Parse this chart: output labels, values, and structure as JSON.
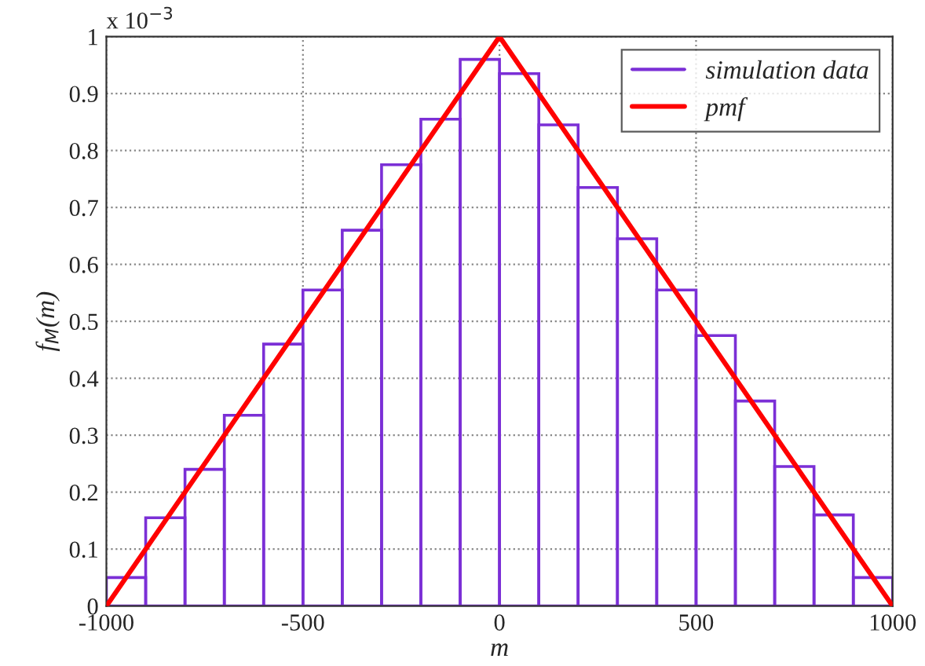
{
  "chart_data": {
    "type": "histogram",
    "xlabel": "m",
    "ylabel": "f$_{M}$(m)",
    "annotations": [
      "x 10$^{−3}$"
    ],
    "bins": [
      -1000,
      -900,
      -800,
      -700,
      -600,
      -500,
      -400,
      -300,
      -200,
      -100,
      0,
      100,
      200,
      300,
      400,
      500,
      600,
      700,
      800,
      900,
      1000
    ],
    "series": [
      {
        "name": "simulation data",
        "color": "#7b2fd6",
        "values": [
          0.05,
          0.155,
          0.24,
          0.335,
          0.46,
          0.555,
          0.66,
          0.775,
          0.855,
          0.96,
          0.935,
          0.845,
          0.735,
          0.645,
          0.555,
          0.475,
          0.36,
          0.245,
          0.16,
          0.05
        ]
      },
      {
        "name": "pmf",
        "type": "line",
        "color": "#ff0000",
        "x": [
          -1000,
          0,
          1000
        ],
        "values": [
          0,
          1,
          0
        ]
      }
    ],
    "xlim": [
      -1000,
      1000
    ],
    "ylim": [
      0,
      1
    ],
    "xticks": [
      -1000,
      -500,
      0,
      500,
      1000
    ],
    "yticks": [
      0,
      0.1,
      0.2,
      0.3,
      0.4,
      0.5,
      0.6,
      0.7,
      0.8,
      0.9,
      1
    ],
    "grid": true,
    "legend": "top right"
  }
}
